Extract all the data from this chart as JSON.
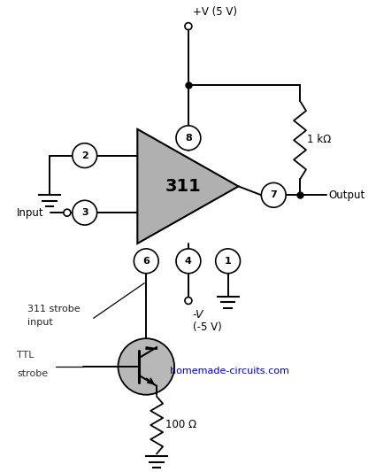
{
  "bg_color": "#ffffff",
  "figsize": [
    4.25,
    5.33
  ],
  "dpi": 100,
  "vplus_label": "+V (5 V)",
  "vminus_label": "-V",
  "vminus_label2": "(-5 V)",
  "output_label": "Output",
  "res1_label": "1 kΩ",
  "res2_label": "100 Ω",
  "input_label": "Input",
  "strobe311_label1": "311 strobe",
  "strobe311_label2": "input",
  "ttl_label1": "TTL",
  "ttl_label2": "strobe",
  "watermark": "homemade-circuits.com",
  "watermark_color": "#0000cc",
  "op_label": "311",
  "triangle_fill": "#b0b0b0",
  "transistor_fill": "#b8b8b8"
}
